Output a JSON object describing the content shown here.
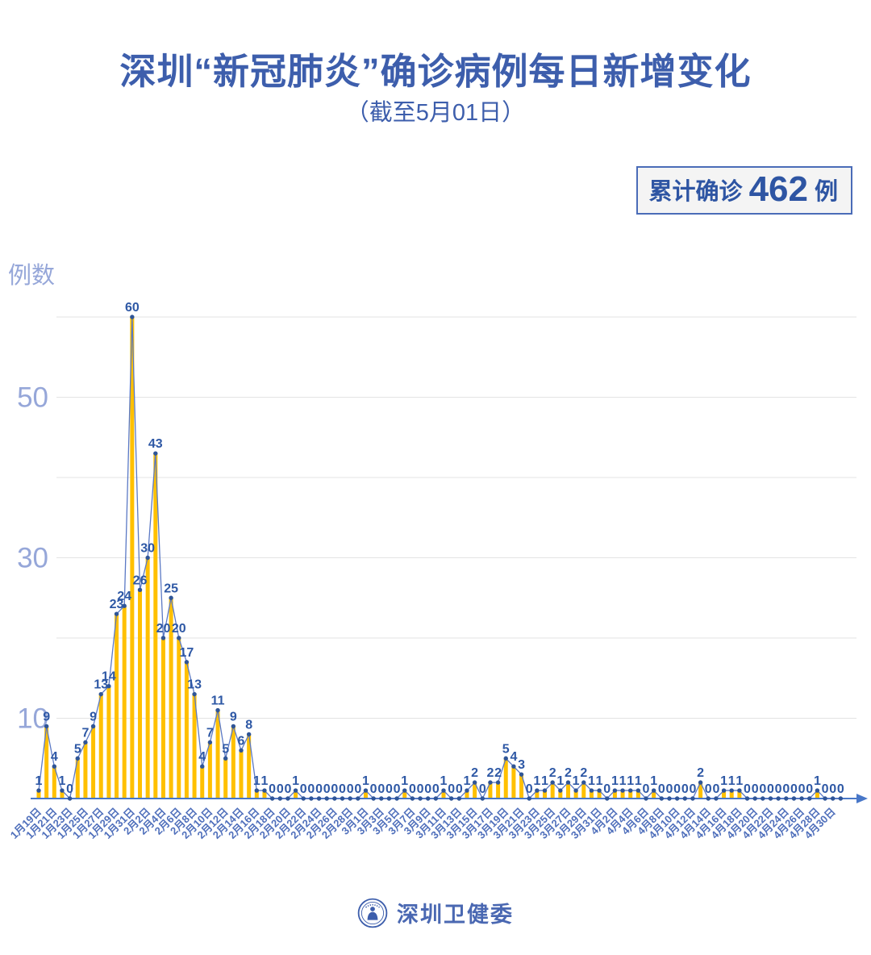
{
  "header": {
    "title": "深圳“新冠肺炎”确诊病例每日新增变化",
    "subtitle": "（截至5月01日）"
  },
  "badge": {
    "label": "累计确诊",
    "value": "462",
    "unit": "例"
  },
  "footer": {
    "org": "深圳卫健委",
    "logo": "shenzhen-health-commission-emblem"
  },
  "colors": {
    "title": "#3D5EAC",
    "bar": "#FFC000",
    "line": "#5B79C4",
    "point": "#2F5597",
    "value_label": "#2E58A5",
    "x_tick": "#4F6FBB",
    "y_tick": "#96A7D9",
    "gridline": "#E3E3E3",
    "axis": "#4877C8",
    "badge_border": "#4A6CB8",
    "badge_bg": "#F4F4F4",
    "badge_text": "#2E55A3",
    "footer": "#4A68B2"
  },
  "chart_data": {
    "type": "bar",
    "title": "深圳“新冠肺炎”确诊病例每日新增变化",
    "subtitle": "（截至5月01日）",
    "xlabel": "",
    "ylabel": "例数",
    "ylim": [
      0,
      60
    ],
    "ytick_labels": [
      10,
      30,
      50
    ],
    "gridline_interval": 10,
    "grid": "horizontal",
    "legend": "none",
    "x_tick_every": 2,
    "cumulative_total": 462,
    "categories": [
      "1月19日",
      "1月20日",
      "1月21日",
      "1月22日",
      "1月23日",
      "1月24日",
      "1月25日",
      "1月26日",
      "1月27日",
      "1月28日",
      "1月29日",
      "1月30日",
      "1月31日",
      "2月1日",
      "2月2日",
      "2月3日",
      "2月4日",
      "2月5日",
      "2月6日",
      "2月7日",
      "2月8日",
      "2月9日",
      "2月10日",
      "2月11日",
      "2月12日",
      "2月13日",
      "2月14日",
      "2月15日",
      "2月16日",
      "2月17日",
      "2月18日",
      "2月19日",
      "2月20日",
      "2月21日",
      "2月22日",
      "2月23日",
      "2月24日",
      "2月25日",
      "2月26日",
      "2月27日",
      "2月28日",
      "2月29日",
      "3月1日",
      "3月2日",
      "3月3日",
      "3月4日",
      "3月5日",
      "3月6日",
      "3月7日",
      "3月8日",
      "3月9日",
      "3月10日",
      "3月11日",
      "3月12日",
      "3月13日",
      "3月14日",
      "3月15日",
      "3月16日",
      "3月17日",
      "3月18日",
      "3月19日",
      "3月20日",
      "3月21日",
      "3月22日",
      "3月23日",
      "3月24日",
      "3月25日",
      "3月26日",
      "3月27日",
      "3月28日",
      "3月29日",
      "3月30日",
      "3月31日",
      "4月1日",
      "4月2日",
      "4月3日",
      "4月4日",
      "4月5日",
      "4月6日",
      "4月7日",
      "4月8日",
      "4月9日",
      "4月10日",
      "4月11日",
      "4月12日",
      "4月13日",
      "4月14日",
      "4月15日",
      "4月16日",
      "4月17日",
      "4月18日",
      "4月19日",
      "4月20日",
      "4月21日",
      "4月22日",
      "4月23日",
      "4月24日",
      "4月25日",
      "4月26日",
      "4月27日",
      "4月28日",
      "4月29日",
      "4月30日",
      "5月1日"
    ],
    "values": [
      1,
      9,
      4,
      1,
      0,
      5,
      7,
      9,
      13,
      14,
      23,
      24,
      60,
      26,
      30,
      43,
      20,
      25,
      20,
      17,
      13,
      4,
      7,
      11,
      5,
      9,
      6,
      8,
      1,
      1,
      0,
      0,
      0,
      1,
      0,
      0,
      0,
      0,
      0,
      0,
      0,
      0,
      1,
      0,
      0,
      0,
      0,
      1,
      0,
      0,
      0,
      0,
      1,
      0,
      0,
      1,
      2,
      0,
      2,
      2,
      5,
      4,
      3,
      0,
      1,
      1,
      2,
      1,
      2,
      1,
      2,
      1,
      1,
      0,
      1,
      1,
      1,
      1,
      0,
      1,
      0,
      0,
      0,
      0,
      0,
      2,
      0,
      0,
      1,
      1,
      1,
      0,
      0,
      0,
      0,
      0,
      0,
      0,
      0,
      0,
      1,
      0,
      0,
      0
    ]
  }
}
